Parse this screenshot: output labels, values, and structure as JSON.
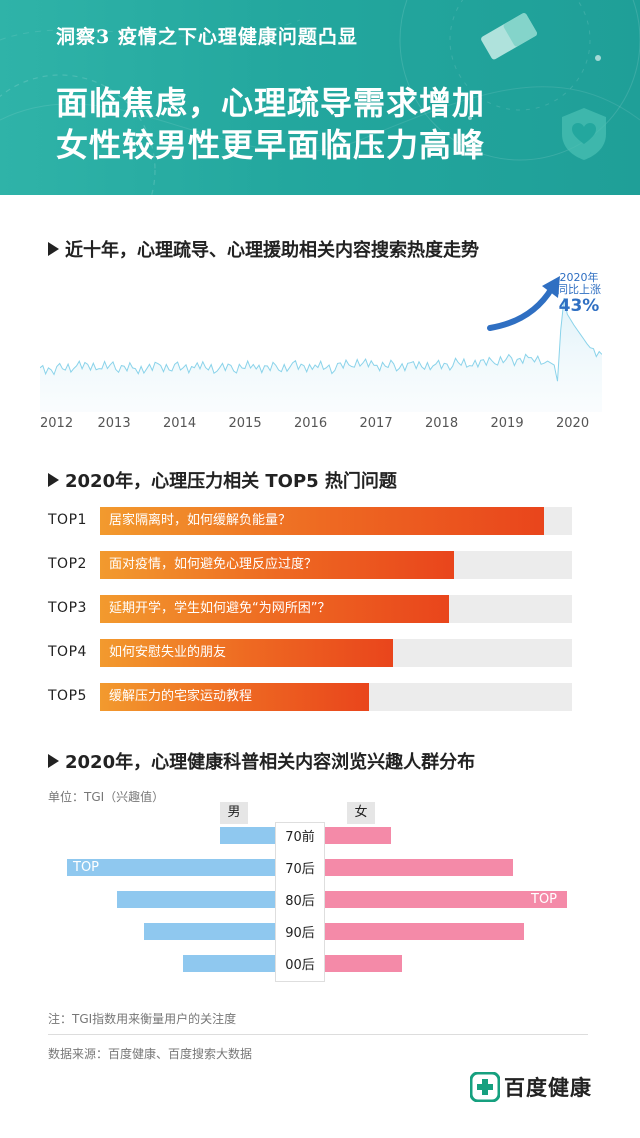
{
  "header": {
    "kicker": "洞察3  疫情之下心理健康问题凸显",
    "title_line1": "面临焦虑，心理疏导需求增加",
    "title_line2": "女性较男性更早面临压力高峰"
  },
  "section1": {
    "title": "近十年，心理疏导、心理援助相关内容搜索热度走势"
  },
  "section2": {
    "title": "2020年，心理压力相关 TOP5 热门问题"
  },
  "section3": {
    "title": "2020年，心理健康科普相关内容浏览兴趣人群分布"
  },
  "colors": {
    "header_bg": "#23a79e",
    "trend_line": "#8ad3ea",
    "annotation_blue": "#2f6fc2",
    "bar_orange": "#ee6a22",
    "male_blue": "#8fc8ef",
    "female_pink": "#f48aa8"
  },
  "chart_data": [
    {
      "type": "line",
      "title": "近十年，心理疏导、心理援助相关内容搜索热度走势",
      "x_ticks": [
        "2012",
        "2013",
        "2014",
        "2015",
        "2016",
        "2017",
        "2018",
        "2019",
        "2020"
      ],
      "x_range": [
        2012.0,
        2020.58
      ],
      "y_range": [
        0,
        100
      ],
      "series": [
        {
          "points": [
            [
              2012.0,
              30
            ],
            [
              2012.3,
              29
            ],
            [
              2012.6,
              31
            ],
            [
              2012.9,
              30
            ],
            [
              2013.2,
              31
            ],
            [
              2013.5,
              29
            ],
            [
              2013.8,
              32
            ],
            [
              2014.1,
              30
            ],
            [
              2014.4,
              31
            ],
            [
              2014.7,
              29
            ],
            [
              2015.0,
              30
            ],
            [
              2015.3,
              31
            ],
            [
              2015.6,
              30
            ],
            [
              2015.9,
              32
            ],
            [
              2016.2,
              31
            ],
            [
              2016.5,
              30
            ],
            [
              2016.8,
              33
            ],
            [
              2017.1,
              32
            ],
            [
              2017.4,
              31
            ],
            [
              2017.7,
              33
            ],
            [
              2018.0,
              32
            ],
            [
              2018.3,
              33
            ],
            [
              2018.6,
              32
            ],
            [
              2018.9,
              34
            ],
            [
              2019.2,
              36
            ],
            [
              2019.5,
              38
            ],
            [
              2019.75,
              35
            ],
            [
              2019.85,
              32
            ],
            [
              2019.9,
              20
            ],
            [
              2019.95,
              58
            ],
            [
              2020.0,
              82
            ],
            [
              2020.05,
              70
            ],
            [
              2020.15,
              62
            ],
            [
              2020.25,
              55
            ],
            [
              2020.35,
              48
            ],
            [
              2020.45,
              42
            ],
            [
              2020.58,
              40
            ]
          ]
        }
      ],
      "annotations": [
        {
          "label": "2020年",
          "label2": "同比上涨",
          "value": "43%"
        }
      ]
    },
    {
      "type": "bar",
      "title": "2020年，心理压力相关 TOP5 热门问题",
      "categories": [
        "TOP1",
        "TOP2",
        "TOP3",
        "TOP4",
        "TOP5"
      ],
      "questions": [
        "居家隔离时，如何缓解负能量？",
        "面对疫情，如何避免心理反应过度？",
        "延期开学，学生如何避免“为网所困”？",
        "如何安慰失业的朋友",
        "缓解压力的宅家运动教程"
      ],
      "values": [
        94,
        75,
        74,
        62,
        57
      ],
      "xlim": [
        0,
        100
      ]
    },
    {
      "type": "bar",
      "title": "2020年，心理健康科普相关内容浏览兴趣人群分布",
      "unit_label": "单位：TGI（兴趣值）",
      "categories": [
        "70前",
        "70后",
        "80后",
        "90后",
        "00后"
      ],
      "series": [
        {
          "name": "男",
          "values": [
            55,
            208,
            158,
            131,
            92
          ]
        },
        {
          "name": "女",
          "values": [
            66,
            188,
            242,
            199,
            77
          ]
        }
      ],
      "top_label": "TOP",
      "top_marks": {
        "男": "70后",
        "女": "80后"
      },
      "xlim": [
        0,
        250
      ]
    }
  ],
  "notes": {
    "tgi_note": "注：TGI指数用来衡量用户的关注度",
    "source": "数据来源：百度健康、百度搜索大数据"
  },
  "brand": {
    "name": "百度健康"
  }
}
